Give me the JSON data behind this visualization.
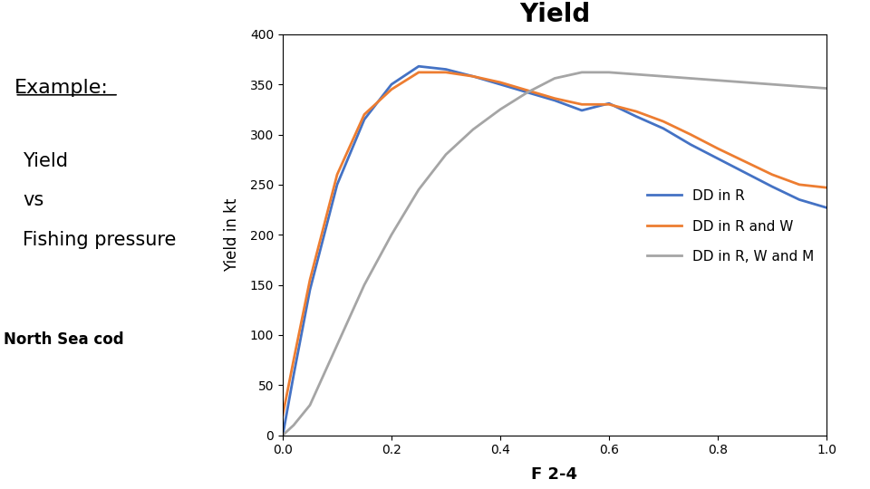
{
  "title": "Yield",
  "xlabel": "F 2-4",
  "ylabel": "Yield in kt",
  "xlim": [
    0,
    1.0
  ],
  "ylim": [
    0,
    400
  ],
  "yticks": [
    0,
    50,
    100,
    150,
    200,
    250,
    300,
    350,
    400
  ],
  "xticks": [
    0,
    0.2,
    0.4,
    0.6,
    0.8,
    1.0
  ],
  "legend_labels": [
    "DD in R",
    "DD in R and W",
    "DD in R, W and M"
  ],
  "line_colors": [
    "#4472C4",
    "#ED7D31",
    "#A5A5A5"
  ],
  "background_color": "#FFFFFF",
  "dd_r_x": [
    0,
    0.02,
    0.05,
    0.1,
    0.15,
    0.2,
    0.25,
    0.3,
    0.35,
    0.4,
    0.45,
    0.5,
    0.55,
    0.6,
    0.65,
    0.7,
    0.75,
    0.8,
    0.85,
    0.9,
    0.95,
    1.0
  ],
  "dd_r_y": [
    0,
    60,
    145,
    250,
    315,
    350,
    368,
    365,
    358,
    350,
    342,
    334,
    324,
    331,
    318,
    306,
    290,
    276,
    262,
    248,
    235,
    227
  ],
  "dd_rw_x": [
    0,
    0.02,
    0.05,
    0.1,
    0.15,
    0.2,
    0.25,
    0.3,
    0.35,
    0.4,
    0.45,
    0.5,
    0.55,
    0.6,
    0.65,
    0.7,
    0.75,
    0.8,
    0.85,
    0.9,
    0.95,
    1.0
  ],
  "dd_rw_y": [
    20,
    75,
    155,
    260,
    320,
    345,
    362,
    362,
    358,
    352,
    344,
    336,
    330,
    330,
    323,
    313,
    300,
    286,
    273,
    260,
    250,
    247
  ],
  "dd_rwm_x": [
    0,
    0.02,
    0.05,
    0.1,
    0.15,
    0.2,
    0.25,
    0.3,
    0.35,
    0.4,
    0.45,
    0.5,
    0.55,
    0.6,
    0.65,
    0.7,
    0.75,
    0.8,
    0.85,
    0.9,
    0.95,
    1.0
  ],
  "dd_rwm_y": [
    0,
    10,
    30,
    90,
    150,
    200,
    245,
    280,
    305,
    325,
    342,
    356,
    362,
    362,
    360,
    358,
    356,
    354,
    352,
    350,
    348,
    346
  ],
  "example_text": "Example:",
  "label_yield": "Yield",
  "label_vs": "vs",
  "label_fishing": "Fishing pressure",
  "label_cod": "North Sea cod",
  "fish_image_color": "#1a1a0a"
}
